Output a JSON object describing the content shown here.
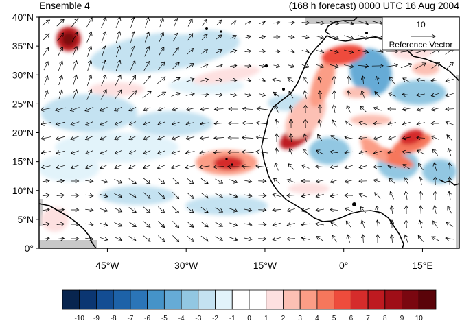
{
  "title_left": "Ensemble 4",
  "title_right": "(168 h forecast) 0000 UTC 16 Aug 2004",
  "lat_labels": [
    "40°N",
    "35°N",
    "30°N",
    "25°N",
    "20°N",
    "15°N",
    "10°N",
    "5°N",
    "0°"
  ],
  "lon_labels": [
    "45°W",
    "30°W",
    "15°W",
    "0°",
    "15°E"
  ],
  "reference_vector": {
    "value": "10",
    "label": "Reference Vector"
  },
  "colorbar": {
    "labels": [
      "-10",
      "-9",
      "-8",
      "-7",
      "-6",
      "-5",
      "-4",
      "-3",
      "-2",
      "-1",
      "0",
      "1",
      "2",
      "3",
      "4",
      "5",
      "6",
      "7",
      "8",
      "9",
      "10"
    ],
    "colors": [
      "#08254f",
      "#0b3672",
      "#134d93",
      "#1d62a8",
      "#2b75b8",
      "#4593c8",
      "#66abd6",
      "#92c7e2",
      "#c4e2f1",
      "#e2f3fa",
      "#ffffff",
      "#ffffff",
      "#fde0e0",
      "#fcc0b4",
      "#fb9d86",
      "#f6775c",
      "#ee4c3c",
      "#d52c2b",
      "#be1a20",
      "#9f0e17",
      "#7a0710",
      "#5a0309"
    ]
  },
  "land_color": "#c8c8c8",
  "land_outline_color": "#000000"
}
